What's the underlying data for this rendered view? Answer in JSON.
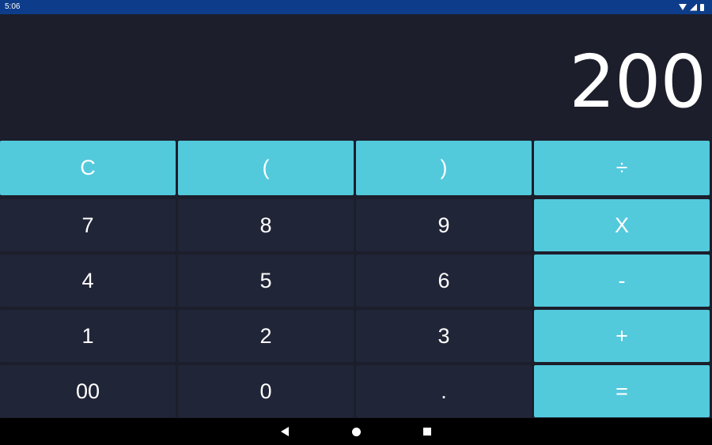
{
  "status_bar": {
    "time": "5:06",
    "icons": [
      "wifi-icon",
      "signal-icon",
      "battery-icon"
    ]
  },
  "display": {
    "value": "200"
  },
  "keys": {
    "clear": "C",
    "open_paren": "(",
    "close_paren": ")",
    "divide": "÷",
    "seven": "7",
    "eight": "8",
    "nine": "9",
    "multiply": "X",
    "four": "4",
    "five": "5",
    "six": "6",
    "minus": "-",
    "one": "1",
    "two": "2",
    "three": "3",
    "plus": "+",
    "double_zero": "00",
    "zero": "0",
    "decimal": ".",
    "equals": "="
  },
  "colors": {
    "status_bar": "#0d3d8a",
    "background": "#1c1e2b",
    "digit_key": "#212538",
    "operator_key": "#53c9dc",
    "nav_bar": "#000000"
  },
  "nav_bar": {
    "icons": [
      "back-icon",
      "home-icon",
      "recents-icon"
    ]
  }
}
